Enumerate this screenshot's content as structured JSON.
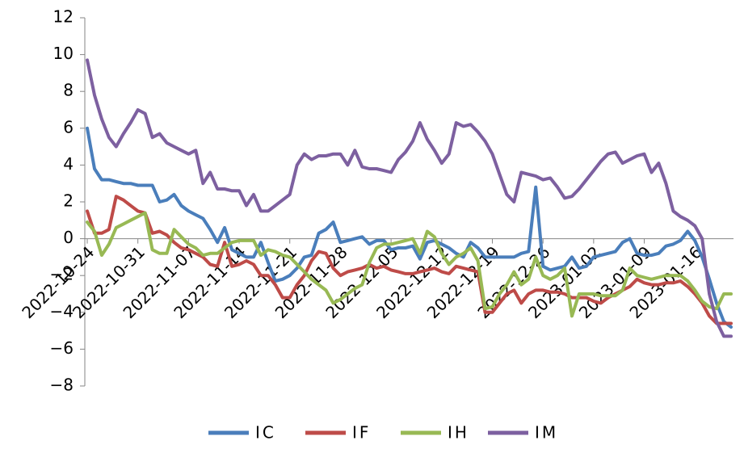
{
  "chart_data": {
    "type": "line",
    "title": "",
    "xlabel": "",
    "ylabel": "",
    "ylim": [
      -8,
      12
    ],
    "yticks": [
      12,
      10,
      8,
      6,
      4,
      2,
      0,
      -2,
      -4,
      -6,
      -8
    ],
    "x_tick_labels": [
      "2022-10-24",
      "2022-10-31",
      "2022-11-07",
      "2022-11-14",
      "2022-11-21",
      "2022-11-28",
      "2022-12-05",
      "2022-12-12",
      "2022-12-19",
      "2022-12-26",
      "2023-01-02",
      "2023-01-09",
      "2023-01-16"
    ],
    "grid": false,
    "legend_position": "bottom",
    "series": [
      {
        "name": "IC",
        "color": "#4a7ebb",
        "values": [
          6.0,
          3.8,
          3.2,
          3.2,
          3.1,
          3.0,
          3.0,
          2.9,
          2.9,
          2.9,
          2.0,
          2.1,
          2.4,
          1.8,
          1.5,
          1.3,
          1.1,
          0.5,
          -0.2,
          0.6,
          -0.6,
          -0.8,
          -1.0,
          -1.0,
          -0.2,
          -1.3,
          -2.3,
          -2.2,
          -2.0,
          -1.6,
          -1.0,
          -0.9,
          0.3,
          0.5,
          0.9,
          -0.2,
          -0.1,
          0.0,
          0.1,
          -0.3,
          -0.1,
          -0.1,
          -0.6,
          -0.5,
          -0.5,
          -0.4,
          -1.1,
          -0.2,
          -0.1,
          -0.3,
          -0.5,
          -0.8,
          -1.0,
          -0.2,
          -0.5,
          -1.0,
          -1.0,
          -1.0,
          -1.0,
          -1.0,
          -0.8,
          -0.7,
          2.8,
          -1.5,
          -1.7,
          -1.6,
          -1.5,
          -1.0,
          -1.6,
          -1.5,
          -1.0,
          -0.9,
          -0.8,
          -0.7,
          -0.2,
          0.0,
          -0.8,
          -0.9,
          -0.9,
          -0.8,
          -0.4,
          -0.3,
          -0.1,
          0.4,
          -0.1,
          -1.0,
          -2.2,
          -3.5,
          -4.5,
          -4.8
        ]
      },
      {
        "name": "IF",
        "color": "#be4b48",
        "values": [
          1.5,
          0.3,
          0.3,
          0.5,
          2.3,
          2.1,
          1.8,
          1.5,
          1.4,
          0.3,
          0.4,
          0.2,
          -0.2,
          -0.5,
          -0.6,
          -0.8,
          -1.0,
          -1.4,
          -1.5,
          -0.2,
          -1.5,
          -1.4,
          -1.2,
          -1.4,
          -2.0,
          -2.0,
          -2.5,
          -3.2,
          -3.2,
          -2.5,
          -2.0,
          -1.2,
          -0.7,
          -0.8,
          -1.6,
          -2.0,
          -1.8,
          -1.7,
          -1.6,
          -1.4,
          -1.6,
          -1.5,
          -1.7,
          -1.8,
          -1.9,
          -1.9,
          -1.8,
          -1.7,
          -1.6,
          -1.8,
          -1.9,
          -1.5,
          -1.6,
          -1.7,
          -1.8,
          -4.0,
          -4.0,
          -3.5,
          -3.0,
          -2.8,
          -3.5,
          -3.0,
          -2.8,
          -2.8,
          -2.9,
          -2.9,
          -3.0,
          -3.2,
          -3.2,
          -3.2,
          -3.4,
          -3.5,
          -3.2,
          -3.0,
          -2.8,
          -2.6,
          -2.2,
          -2.4,
          -2.5,
          -2.5,
          -2.4,
          -2.4,
          -2.3,
          -2.6,
          -3.0,
          -3.5,
          -4.2,
          -4.6,
          -4.6,
          -4.6
        ]
      },
      {
        "name": "IH",
        "color": "#98b954",
        "values": [
          0.9,
          0.4,
          -0.9,
          -0.3,
          0.6,
          0.8,
          1.0,
          1.2,
          1.4,
          -0.6,
          -0.8,
          -0.8,
          0.5,
          0.1,
          -0.3,
          -0.5,
          -0.9,
          -0.8,
          -0.8,
          -0.5,
          -0.2,
          -0.1,
          -0.1,
          -0.1,
          -0.9,
          -0.6,
          -0.7,
          -0.9,
          -1.0,
          -1.4,
          -1.8,
          -2.2,
          -2.5,
          -2.8,
          -3.5,
          -3.3,
          -3.0,
          -2.7,
          -2.5,
          -1.3,
          -0.5,
          -0.3,
          -0.3,
          -0.2,
          -0.1,
          0.0,
          -0.8,
          0.4,
          0.1,
          -0.8,
          -1.4,
          -1.0,
          -0.8,
          -0.5,
          -1.2,
          -3.8,
          -3.7,
          -3.0,
          -2.5,
          -1.8,
          -2.5,
          -2.2,
          -1.0,
          -2.0,
          -2.2,
          -2.0,
          -1.6,
          -4.2,
          -3.0,
          -3.0,
          -3.0,
          -3.1,
          -3.1,
          -3.1,
          -2.8,
          -1.6,
          -2.0,
          -2.1,
          -2.2,
          -2.1,
          -2.0,
          -2.0,
          -2.0,
          -2.3,
          -2.8,
          -3.4,
          -3.7,
          -3.8,
          -3.0,
          -3.0
        ]
      },
      {
        "name": "IM",
        "color": "#7d60a0",
        "values": [
          9.7,
          7.8,
          6.5,
          5.5,
          5.0,
          5.7,
          6.3,
          7.0,
          6.8,
          5.5,
          5.7,
          5.2,
          5.0,
          4.8,
          4.6,
          4.8,
          3.0,
          3.6,
          2.7,
          2.7,
          2.6,
          2.6,
          1.8,
          2.4,
          1.5,
          1.5,
          1.8,
          2.1,
          2.4,
          4.0,
          4.6,
          4.3,
          4.5,
          4.5,
          4.6,
          4.6,
          4.0,
          4.8,
          3.9,
          3.8,
          3.8,
          3.7,
          3.6,
          4.3,
          4.7,
          5.3,
          6.3,
          5.4,
          4.8,
          4.1,
          4.6,
          6.3,
          6.1,
          6.2,
          5.8,
          5.3,
          4.6,
          3.5,
          2.4,
          2.0,
          3.6,
          3.5,
          3.4,
          3.2,
          3.3,
          2.8,
          2.2,
          2.3,
          2.7,
          3.2,
          3.7,
          4.2,
          4.6,
          4.7,
          4.1,
          4.3,
          4.5,
          4.6,
          3.6,
          4.1,
          3.0,
          1.5,
          1.2,
          1.0,
          0.7,
          0.0,
          -3.0,
          -4.5,
          -5.3,
          -5.3
        ]
      }
    ]
  }
}
